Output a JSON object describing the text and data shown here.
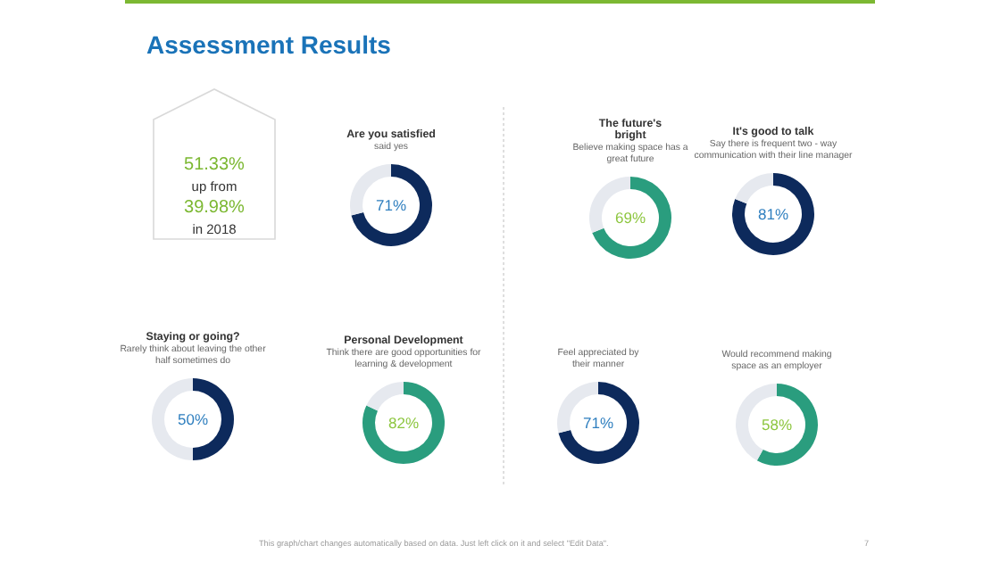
{
  "chart_data": [
    {
      "type": "other",
      "title": "Assessment Results",
      "annotations": [
        "This graph/chart changes automatically based on data. Just left click on it and select \"Edit Data\".",
        "7"
      ]
    },
    {
      "type": "other",
      "annotations": [
        "51.33%",
        "up from",
        "39.98%",
        "in 2018"
      ]
    },
    {
      "type": "donut",
      "title": "Are you satisfied",
      "subtitle": "said yes",
      "categories": [
        null,
        null
      ],
      "values": [
        71,
        29
      ],
      "colors": [
        "#0d2a5c",
        "#e6e9ef"
      ],
      "annotations": [
        "71%"
      ]
    },
    {
      "type": "donut",
      "title": "The future's bright",
      "subtitle": "Believe making space has a great future",
      "categories": [
        null,
        null
      ],
      "values": [
        69,
        31
      ],
      "colors": [
        "#2a9d7e",
        "#e6e9ef"
      ],
      "annotations": [
        "69%"
      ]
    },
    {
      "type": "donut",
      "title": "It's good to talk",
      "subtitle": "Say there is frequent two - way communication with their line manager",
      "categories": [
        null,
        null
      ],
      "values": [
        81,
        19
      ],
      "colors": [
        "#0d2a5c",
        "#e6e9ef"
      ],
      "annotations": [
        "81%"
      ]
    },
    {
      "type": "donut",
      "title": "Staying or going?",
      "subtitle": "Rarely think about leaving the other half sometimes do",
      "categories": [
        null,
        null
      ],
      "values": [
        50,
        50
      ],
      "colors": [
        "#0d2a5c",
        "#e6e9ef"
      ],
      "annotations": [
        "50%"
      ]
    },
    {
      "type": "donut",
      "title": "Personal Development",
      "subtitle": "Think there are good opportunities for learning & development",
      "categories": [
        null,
        null
      ],
      "values": [
        82,
        18
      ],
      "colors": [
        "#2a9d7e",
        "#e6e9ef"
      ],
      "annotations": [
        "82%"
      ]
    },
    {
      "type": "donut",
      "subtitle": "Feel appreciated by their manner",
      "categories": [
        null,
        null
      ],
      "values": [
        71,
        29
      ],
      "colors": [
        "#0d2a5c",
        "#e6e9ef"
      ],
      "annotations": [
        "71%"
      ]
    },
    {
      "type": "donut",
      "subtitle": "Would recommend making space as an employer",
      "categories": [
        null,
        null
      ],
      "values": [
        58,
        42
      ],
      "colors": [
        "#2a9d7e",
        "#e6e9ef"
      ],
      "annotations": [
        "58%"
      ]
    }
  ]
}
